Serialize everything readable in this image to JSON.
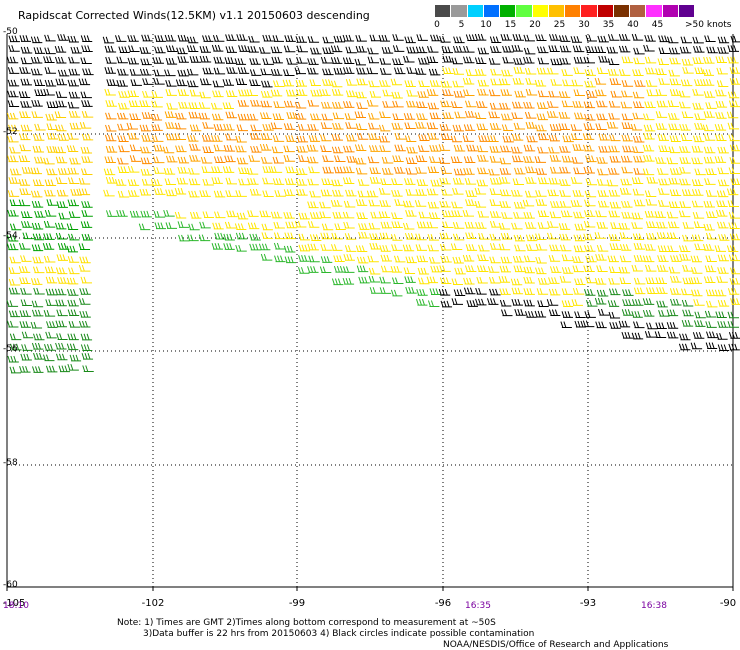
{
  "title": "Rapidscat Corrected Winds(12.5KM) v1.1 20150603 descending",
  "legend": {
    "colors": [
      "#4a4a4a",
      "#9a9a9a",
      "#00d0ff",
      "#0070ff",
      "#00b000",
      "#60ff40",
      "#ffff00",
      "#ffc000",
      "#ff8000",
      "#ff2020",
      "#c00000",
      "#7a3000",
      "#b06040",
      "#ff30ff",
      "#b000b0",
      "#600090"
    ],
    "labels": [
      "0",
      "5",
      "10",
      "15",
      "20",
      "25",
      "30",
      "35",
      "40",
      "45",
      ">50 knots"
    ]
  },
  "axes": {
    "lat_labels": [
      "-50",
      "-52",
      "-54",
      "-56",
      "-58",
      "-60"
    ],
    "lon_labels": [
      "-105",
      "-102",
      "-99",
      "-96",
      "-93",
      "-90"
    ]
  },
  "times": [
    "18:10",
    "16:35",
    "16:38"
  ],
  "notes": {
    "line1": "Note: 1) Times are GMT 2)Times along bottom correspond to measurement at ~50S",
    "line2": "3)Data buffer is 22 hrs from 20150603 4) Black circles indicate possible contamination",
    "line3": "NOAA/NESDIS/Office of Research and Applications"
  }
}
